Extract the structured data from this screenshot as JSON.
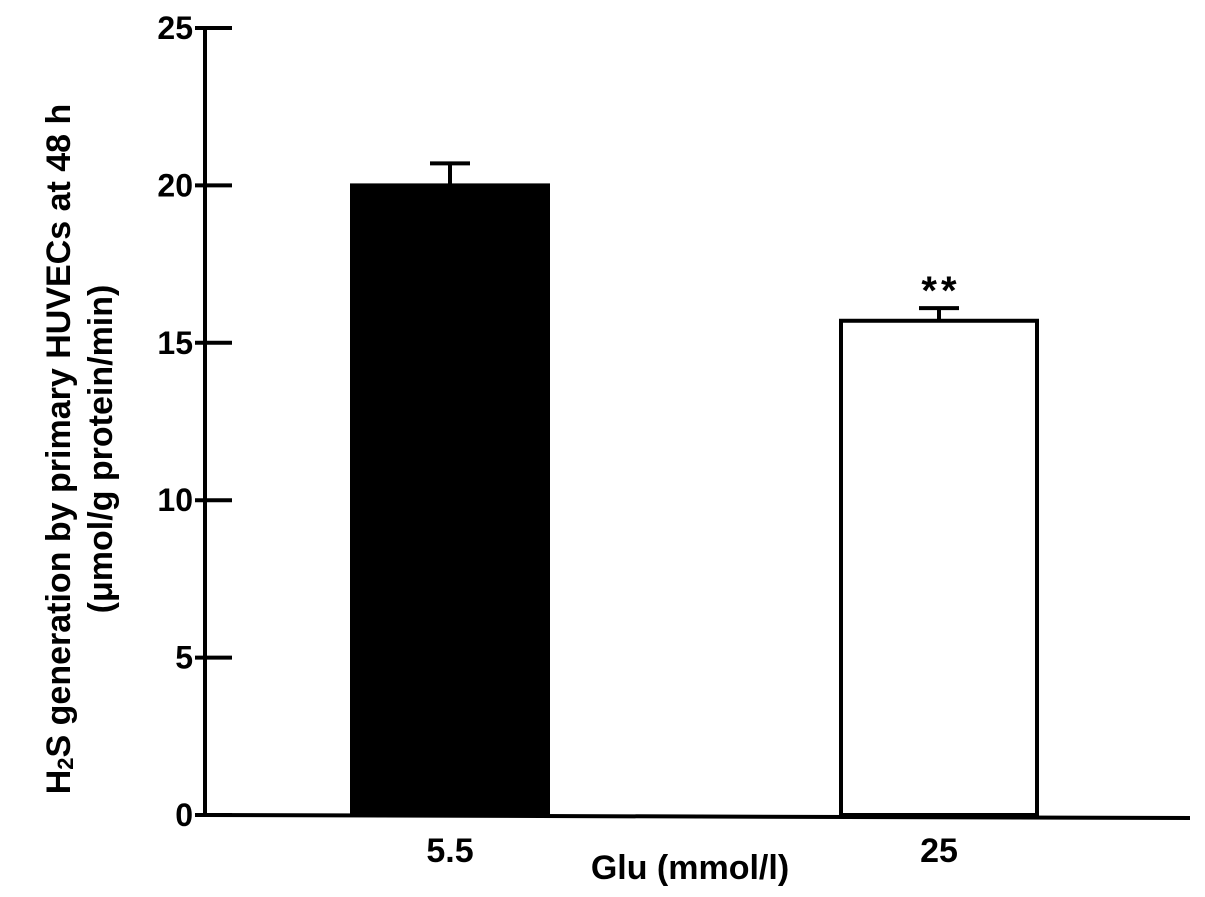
{
  "chart_data": {
    "type": "bar",
    "categories": [
      "5.5",
      "25"
    ],
    "values": [
      20.0,
      15.7
    ],
    "errors": [
      0.7,
      0.4
    ],
    "bar_colors": [
      "#000000",
      "#ffffff"
    ],
    "bar_edge_color": "#000000",
    "annotations": [
      "",
      "**"
    ],
    "xlabel": "Glu (mmol/l)",
    "ylabel": {
      "line1_pre": "H",
      "line1_sub": "2",
      "line1_post": "S generation by primary HUVECs at 48 h",
      "line2": "(μmol/g protein/min)"
    },
    "ylim": [
      0,
      25
    ],
    "yticks": [
      0,
      5,
      10,
      15,
      20,
      25
    ],
    "grid": false,
    "legend": "none"
  }
}
